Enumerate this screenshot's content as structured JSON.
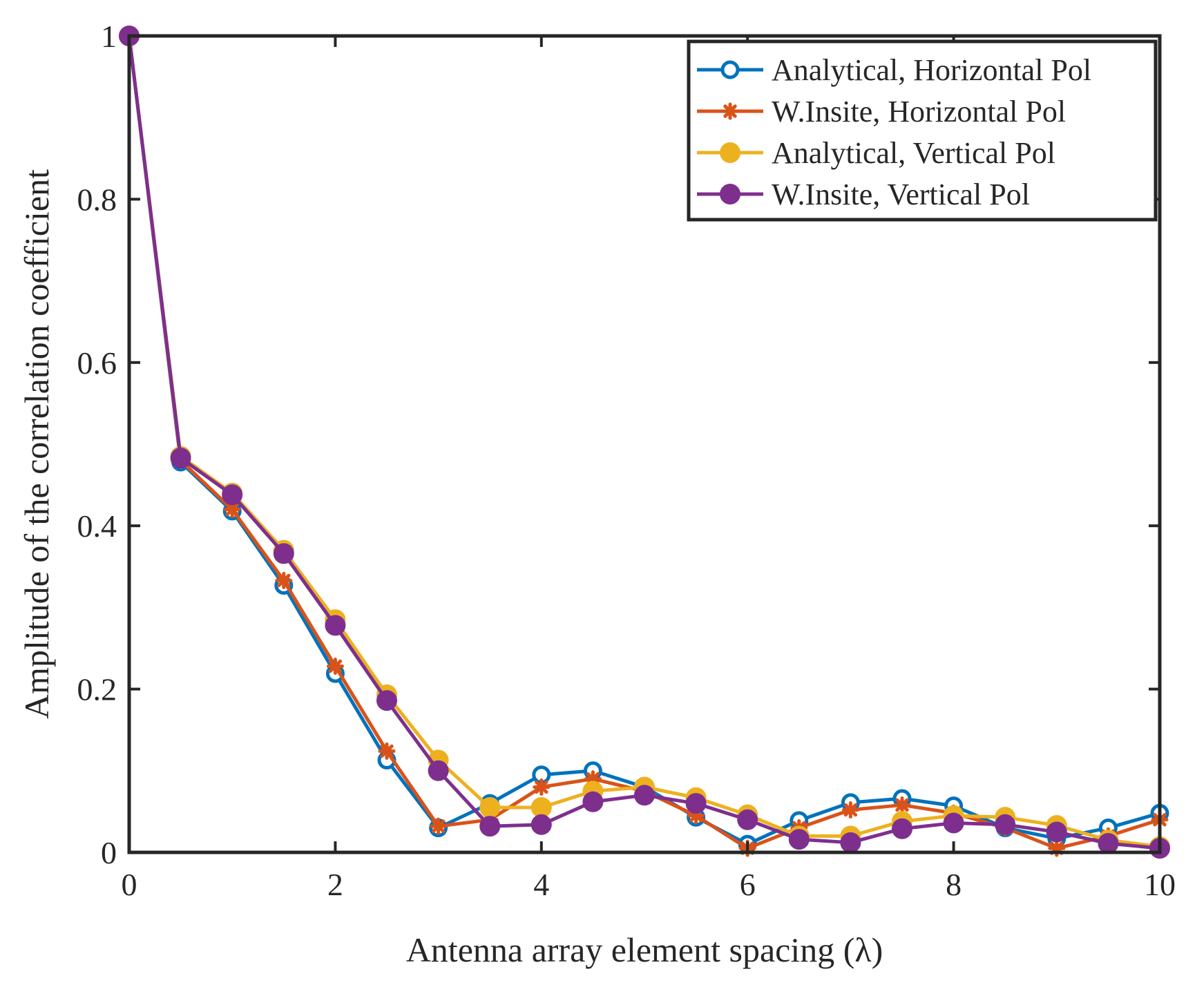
{
  "chart_data": {
    "type": "line",
    "xlabel": "Antenna array element spacing (λ)",
    "ylabel": "Amplitude of the correlation coefficient",
    "xlim": [
      0,
      10
    ],
    "ylim": [
      0,
      1
    ],
    "xticks": [
      "0",
      "2",
      "4",
      "6",
      "8",
      "10"
    ],
    "yticks": [
      "0",
      "0.2",
      "0.4",
      "0.6",
      "0.8",
      "1"
    ],
    "grid": false,
    "legend_position": "top-right",
    "x": [
      0,
      0.5,
      1,
      1.5,
      2,
      2.5,
      3,
      3.5,
      4,
      4.5,
      5,
      5.5,
      6,
      6.5,
      7,
      7.5,
      8,
      8.5,
      9,
      9.5,
      10
    ],
    "series": [
      {
        "name": "Analytical, Horizontal Pol",
        "color": "#0072BD",
        "marker": "open-circle",
        "values": [
          1.0,
          0.478,
          0.418,
          0.327,
          0.219,
          0.113,
          0.03,
          0.06,
          0.095,
          0.1,
          0.08,
          0.043,
          0.01,
          0.039,
          0.061,
          0.066,
          0.057,
          0.03,
          0.017,
          0.03,
          0.048
        ]
      },
      {
        "name": "W.Insite, Horizontal Pol",
        "color": "#D95319",
        "marker": "asterisk",
        "values": [
          1.0,
          0.48,
          0.42,
          0.333,
          0.228,
          0.124,
          0.032,
          0.04,
          0.08,
          0.09,
          0.075,
          0.045,
          0.005,
          0.03,
          0.052,
          0.058,
          0.048,
          0.03,
          0.005,
          0.02,
          0.04
        ]
      },
      {
        "name": "Analytical, Vertical Pol",
        "color": "#EDB120",
        "marker": "filled-circle",
        "values": [
          1.0,
          0.485,
          0.44,
          0.37,
          0.285,
          0.193,
          0.113,
          0.055,
          0.055,
          0.075,
          0.08,
          0.067,
          0.046,
          0.02,
          0.02,
          0.038,
          0.045,
          0.043,
          0.033,
          0.015,
          0.007
        ]
      },
      {
        "name": "W.Insite, Vertical Pol",
        "color": "#7E2F8E",
        "marker": "filled-circle",
        "values": [
          1.0,
          0.483,
          0.438,
          0.366,
          0.278,
          0.186,
          0.1,
          0.032,
          0.034,
          0.062,
          0.07,
          0.06,
          0.04,
          0.016,
          0.012,
          0.029,
          0.036,
          0.034,
          0.025,
          0.011,
          0.005
        ]
      }
    ]
  }
}
